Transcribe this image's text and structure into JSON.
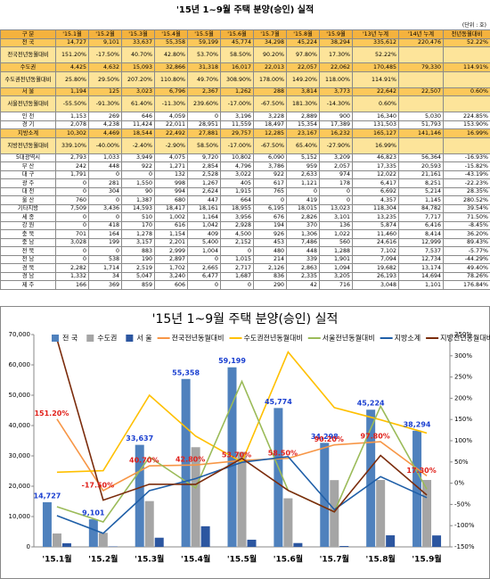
{
  "title": "'15년 1~9월 주택 분양(승인) 실적",
  "unit": "(단위 : 호)",
  "table": {
    "header": [
      "구 분",
      "'15.1월",
      "'15.2월",
      "'15.3월",
      "'15.4월",
      "'15.5월",
      "'15.6월",
      "'15.7월",
      "'15.8월",
      "'15.9월",
      "'13년 누계",
      "'14년 누계",
      "전년동월대비"
    ],
    "rows": [
      [
        "전 국",
        "14,727",
        "9,101",
        "33,637",
        "55,358",
        "59,199",
        "45,774",
        "34,298",
        "45,224",
        "38,294",
        "335,612",
        "220,476",
        "52.22%"
      ],
      [
        "전국전년동월대비",
        "151.20%",
        "-17.50%",
        "40.70%",
        "42.80%",
        "53.70%",
        "58.50%",
        "90.20%",
        "97.80%",
        "17.30%",
        "52.22%"
      ],
      [
        "수도권",
        "4,425",
        "4,632",
        "15,093",
        "32,866",
        "31,318",
        "16,017",
        "22,013",
        "22,057",
        "22,062",
        "170,485",
        "79,330",
        "114.91%"
      ],
      [
        "수도권전년동월대비",
        "25.80%",
        "29.50%",
        "207.20%",
        "110.80%",
        "49.70%",
        "308.90%",
        "178.00%",
        "149.20%",
        "118.00%",
        "114.91%"
      ],
      [
        "서 울",
        "1,194",
        "125",
        "3,023",
        "6,796",
        "2,367",
        "1,262",
        "288",
        "3,814",
        "3,773",
        "22,642",
        "22,507",
        "0.60%"
      ],
      [
        "서울전년동월대비",
        "-55.50%",
        "-91.30%",
        "61.40%",
        "-11.30%",
        "239.60%",
        "-17.00%",
        "-67.50%",
        "181.30%",
        "-14.30%",
        "0.60%"
      ],
      [
        "인 천",
        "1,153",
        "269",
        "646",
        "4,059",
        "0",
        "3,196",
        "3,228",
        "2,889",
        "900",
        "16,340",
        "5,030",
        "224.85%"
      ],
      [
        "경 기",
        "2,078",
        "4,238",
        "11,424",
        "22,011",
        "28,951",
        "11,559",
        "18,497",
        "15,354",
        "17,389",
        "131,503",
        "51,793",
        "153.90%"
      ],
      [
        "지방소계",
        "10,302",
        "4,469",
        "18,544",
        "22,492",
        "27,881",
        "29,757",
        "12,285",
        "23,167",
        "16,232",
        "165,127",
        "141,146",
        "16.99%"
      ],
      [
        "지방전년동월대비",
        "339.10%",
        "-40.00%",
        "-2.40%",
        "-2.90%",
        "58.50%",
        "-17.00%",
        "-67.50%",
        "65.40%",
        "-27.90%",
        "16.99%"
      ],
      [
        "5대광역시",
        "2,793",
        "1,033",
        "3,949",
        "4,075",
        "9,720",
        "10,802",
        "6,090",
        "5,152",
        "3,209",
        "46,823",
        "56,364",
        "-16.93%"
      ],
      [
        "부 산",
        "242",
        "448",
        "922",
        "1,271",
        "2,854",
        "4,796",
        "3,786",
        "959",
        "2,057",
        "17,335",
        "20,593",
        "-15.82%"
      ],
      [
        "대 구",
        "1,791",
        "0",
        "0",
        "132",
        "2,528",
        "3,022",
        "922",
        "2,633",
        "974",
        "12,022",
        "21,161",
        "-43.19%"
      ],
      [
        "광 주",
        "0",
        "281",
        "1,550",
        "998",
        "1,267",
        "405",
        "617",
        "1,121",
        "178",
        "6,417",
        "8,251",
        "-22.23%"
      ],
      [
        "대 전",
        "0",
        "304",
        "90",
        "994",
        "2,624",
        "1,915",
        "765",
        "0",
        "0",
        "6,692",
        "5,214",
        "28.35%"
      ],
      [
        "울 산",
        "760",
        "0",
        "1,387",
        "680",
        "447",
        "664",
        "0",
        "419",
        "0",
        "4,357",
        "1,145",
        "280.52%"
      ],
      [
        "기타지방",
        "7,509",
        "3,436",
        "14,593",
        "18,417",
        "18,161",
        "18,955",
        "6,195",
        "18,015",
        "13,023",
        "118,304",
        "84,782",
        "39.54%"
      ],
      [
        "세 종",
        "0",
        "0",
        "510",
        "1,002",
        "1,164",
        "3,956",
        "676",
        "2,826",
        "3,101",
        "13,235",
        "7,717",
        "71.50%"
      ],
      [
        "강 원",
        "0",
        "418",
        "170",
        "616",
        "1,042",
        "2,928",
        "194",
        "370",
        "136",
        "5,874",
        "6,416",
        "-8.45%"
      ],
      [
        "충 북",
        "701",
        "164",
        "1,278",
        "1,154",
        "409",
        "4,500",
        "926",
        "1,306",
        "1,022",
        "11,460",
        "8,414",
        "36.20%"
      ],
      [
        "충 남",
        "3,028",
        "199",
        "3,157",
        "2,201",
        "5,400",
        "2,152",
        "453",
        "7,486",
        "560",
        "24,616",
        "12,999",
        "89.43%"
      ],
      [
        "전 북",
        "0",
        "0",
        "883",
        "2,999",
        "1,004",
        "0",
        "480",
        "448",
        "1,288",
        "7,102",
        "7,537",
        "-5.77%"
      ],
      [
        "전 남",
        "0",
        "538",
        "190",
        "2,897",
        "0",
        "1,015",
        "214",
        "339",
        "1,901",
        "7,094",
        "12,734",
        "-44.29%"
      ],
      [
        "경 북",
        "2,282",
        "1,714",
        "2,519",
        "1,702",
        "2,665",
        "2,717",
        "2,126",
        "2,863",
        "1,094",
        "19,682",
        "13,174",
        "49.40%"
      ],
      [
        "경 남",
        "1,332",
        "34",
        "5,047",
        "3,240",
        "6,477",
        "1,687",
        "836",
        "2,335",
        "3,205",
        "26,193",
        "14,694",
        "78.26%"
      ],
      [
        "제 주",
        "166",
        "369",
        "859",
        "606",
        "0",
        "0",
        "290",
        "42",
        "716",
        "3,048",
        "1,101",
        "176.84%"
      ]
    ]
  },
  "chart_data": {
    "type": "bar",
    "title": "'15년 1~9월 주택 분양(승인) 실적",
    "categories": [
      "'15.1월",
      "'15.2월",
      "'15.3월",
      "'15.4월",
      "'15.5월",
      "'15.6월",
      "'15.7월",
      "'15.8월",
      "'15.9월"
    ],
    "series": [
      {
        "name": "전 국",
        "type": "bar",
        "color": "#4f81bd",
        "values": [
          14727,
          9101,
          33637,
          55358,
          59199,
          45774,
          34298,
          45224,
          38294
        ],
        "value_labels": [
          "14,727",
          "9,101",
          "33,637",
          "55,358",
          "59,199",
          "45,774",
          "34,298",
          "45,224",
          "38,294"
        ]
      },
      {
        "name": "수도권",
        "type": "bar",
        "color": "#a5a5a5",
        "values": [
          4425,
          4632,
          15093,
          32866,
          31318,
          16017,
          22013,
          22057,
          22062
        ]
      },
      {
        "name": "서 울",
        "type": "bar",
        "color": "#2c56a0",
        "values": [
          1194,
          125,
          3023,
          6796,
          2367,
          1262,
          288,
          3814,
          3773
        ]
      },
      {
        "name": "전국전년동월대비",
        "type": "line",
        "axis": "y2",
        "color": "#f79646",
        "values": [
          151.2,
          -17.5,
          40.7,
          42.8,
          53.7,
          58.5,
          90.2,
          97.8,
          17.3
        ],
        "value_labels": [
          "151.20%",
          "-17.50%",
          "40.70%",
          "42.80%",
          "53.70%",
          "58.50%",
          "90.20%",
          "97.80%",
          "17.30%"
        ]
      },
      {
        "name": "수도권전년동월대비",
        "type": "line",
        "axis": "y2",
        "color": "#ffc000",
        "values": [
          25.8,
          29.5,
          207.2,
          110.8,
          49.7,
          308.9,
          178,
          149.2,
          118
        ]
      },
      {
        "name": "서울전년동월대비",
        "type": "line",
        "axis": "y2",
        "color": "#9bbb59",
        "values": [
          -55.5,
          -91.3,
          61.4,
          -11.3,
          239.6,
          -17,
          -67.5,
          181.3,
          -14.3
        ]
      },
      {
        "name": "지방소계",
        "type": "line",
        "color": "#1f5fa8",
        "values": [
          10302,
          4469,
          18544,
          22492,
          27881,
          29757,
          12285,
          23167,
          16232
        ]
      },
      {
        "name": "지방전년동월대비",
        "type": "line",
        "axis": "y2",
        "color": "#7b2c0c",
        "values": [
          339.1,
          -40,
          -2.4,
          -2.9,
          58.5,
          -17,
          -67.5,
          65.4,
          -27.9
        ]
      }
    ],
    "ylim": [
      0,
      70000
    ],
    "yticks": [
      0,
      {
        "value": 10000,
        "label": "10,000"
      },
      {
        "value": 20000,
        "label": "20,000"
      },
      {
        "value": 30000,
        "label": "30,000"
      },
      {
        "value": 40000,
        "label": "40,000"
      },
      {
        "value": 50000,
        "label": "50,000"
      },
      {
        "value": 60000,
        "label": "60,000"
      },
      {
        "value": 70000,
        "label": "70,000"
      }
    ],
    "y2lim": [
      -150,
      350
    ],
    "y2ticks": [
      {
        "value": -150,
        "label": "-150%"
      },
      {
        "value": -100,
        "label": "-100%"
      },
      {
        "value": -50,
        "label": "-50%"
      },
      {
        "value": 0,
        "label": "0%"
      },
      {
        "value": 50,
        "label": "50%"
      },
      {
        "value": 100,
        "label": "100%"
      },
      {
        "value": 150,
        "label": "150%"
      },
      {
        "value": 200,
        "label": "200%"
      },
      {
        "value": 250,
        "label": "250%"
      },
      {
        "value": 300,
        "label": "300%"
      },
      {
        "value": 350,
        "label": "350%"
      }
    ],
    "grid": false
  }
}
